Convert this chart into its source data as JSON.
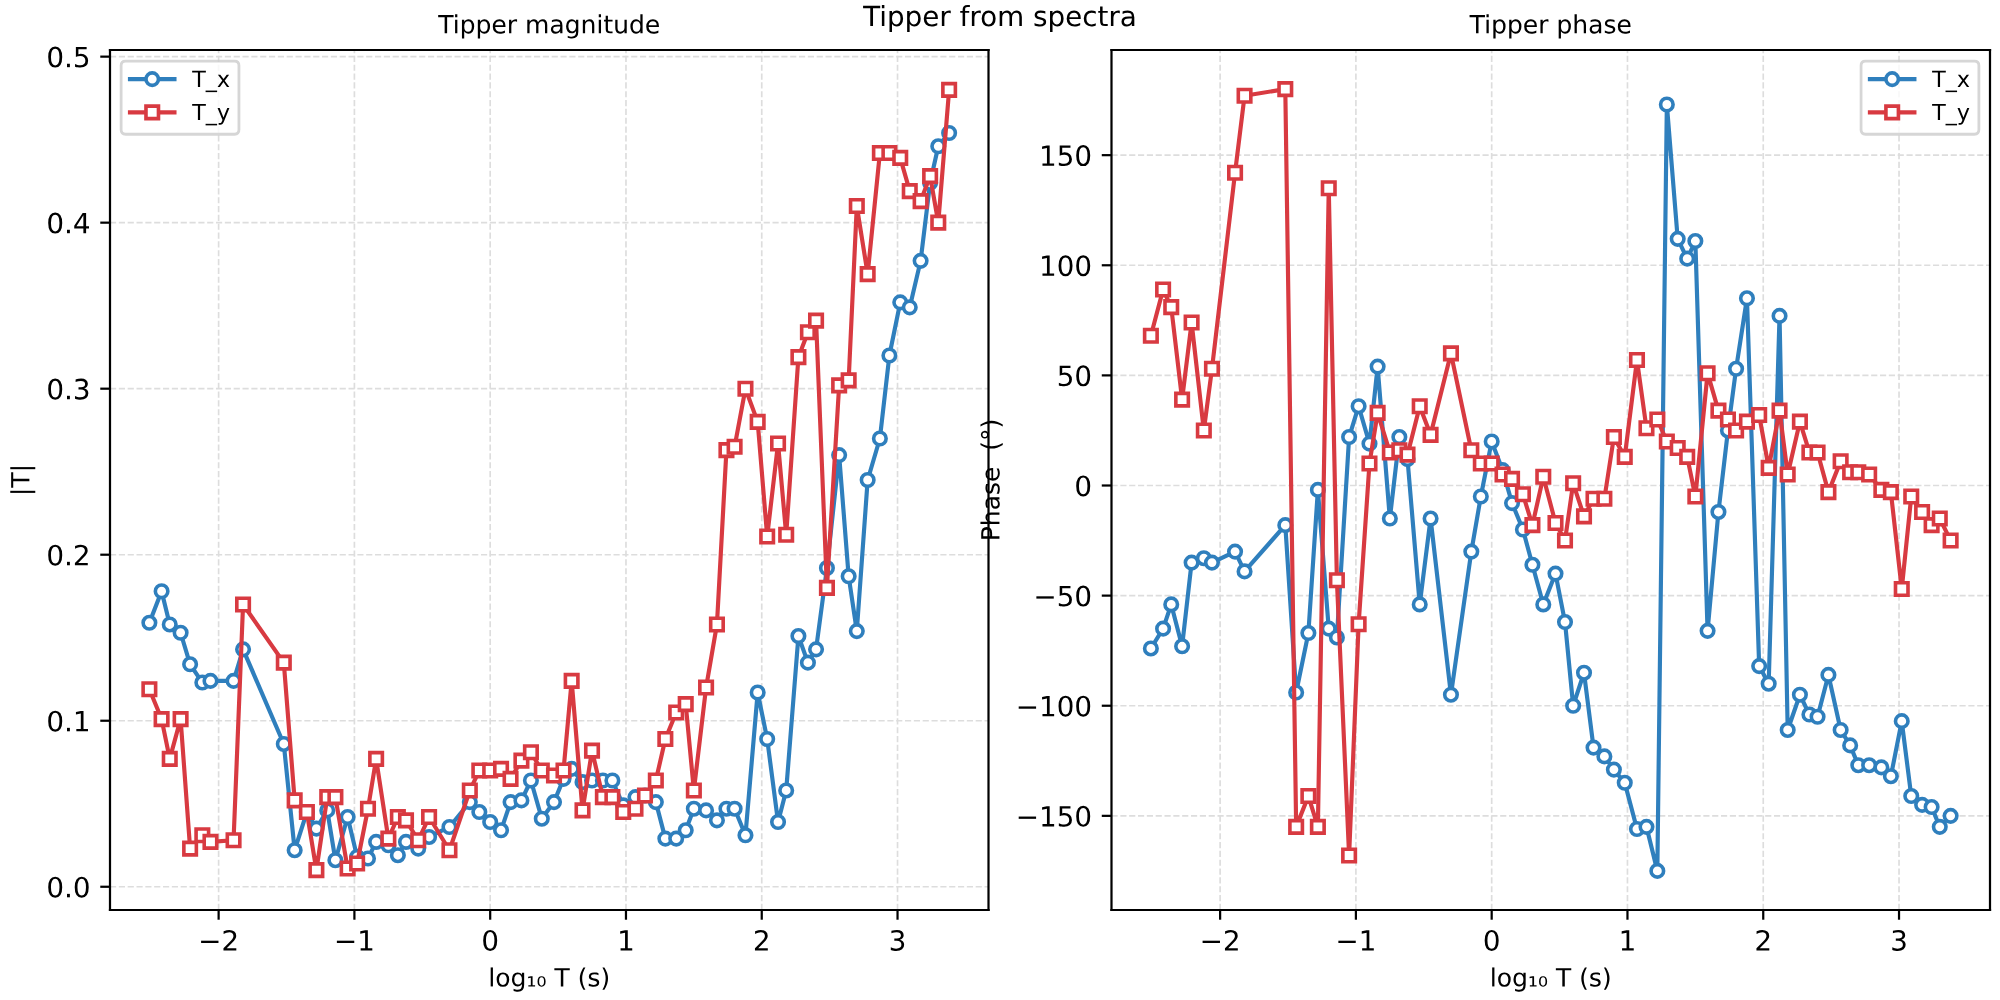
{
  "chart_data": [
    {
      "type": "line",
      "title": "Tipper magnitude",
      "xlabel": "log₁₀ T (s)",
      "ylabel": "|T|",
      "annotations": [
        "Tipper from spectra"
      ],
      "x": [
        -2.51,
        -2.42,
        -2.36,
        -2.28,
        -2.21,
        -2.12,
        -2.06,
        -1.89,
        -1.82,
        -1.52,
        -1.44,
        -1.35,
        -1.28,
        -1.2,
        -1.14,
        -1.05,
        -0.98,
        -0.9,
        -0.84,
        -0.75,
        -0.68,
        -0.62,
        -0.53,
        -0.45,
        -0.3,
        -0.15,
        -0.08,
        0.0,
        0.08,
        0.15,
        0.23,
        0.3,
        0.38,
        0.47,
        0.54,
        0.6,
        0.68,
        0.75,
        0.83,
        0.9,
        0.98,
        1.07,
        1.14,
        1.22,
        1.29,
        1.37,
        1.44,
        1.5,
        1.59,
        1.67,
        1.74,
        1.8,
        1.88,
        1.97,
        2.04,
        2.12,
        2.18,
        2.27,
        2.34,
        2.4,
        2.48,
        2.57,
        2.64,
        2.7,
        2.78,
        2.87,
        2.94,
        3.02,
        3.09,
        3.17,
        3.24,
        3.3,
        3.38
      ],
      "series": [
        {
          "name": "T_x",
          "color": "#2f7fbd",
          "marker": "circle",
          "values": [
            0.159,
            0.178,
            0.158,
            0.153,
            0.134,
            0.123,
            0.124,
            0.124,
            0.143,
            0.086,
            0.022,
            0.045,
            0.035,
            0.046,
            0.016,
            0.042,
            0.018,
            0.017,
            0.027,
            0.025,
            0.019,
            0.027,
            0.023,
            0.03,
            0.036,
            0.051,
            0.045,
            0.039,
            0.034,
            0.051,
            0.052,
            0.064,
            0.041,
            0.051,
            0.065,
            0.071,
            0.063,
            0.064,
            0.064,
            0.064,
            0.049,
            0.054,
            0.055,
            0.051,
            0.029,
            0.029,
            0.034,
            0.047,
            0.046,
            0.04,
            0.047,
            0.047,
            0.031,
            0.117,
            0.089,
            0.039,
            0.058,
            0.151,
            0.135,
            0.143,
            0.192,
            0.26,
            0.187,
            0.154,
            0.245,
            0.27,
            0.32,
            0.352,
            0.349,
            0.377,
            0.424,
            0.446,
            0.454
          ]
        },
        {
          "name": "T_y",
          "color": "#d83a41",
          "marker": "square",
          "values": [
            0.119,
            0.101,
            0.077,
            0.101,
            0.023,
            0.031,
            0.027,
            0.028,
            0.17,
            0.135,
            0.052,
            0.045,
            0.01,
            0.054,
            0.054,
            0.011,
            0.014,
            0.047,
            0.077,
            0.029,
            0.042,
            0.04,
            0.028,
            0.042,
            0.022,
            0.058,
            0.07,
            0.07,
            0.071,
            0.065,
            0.076,
            0.081,
            0.07,
            0.067,
            0.07,
            0.124,
            0.046,
            0.082,
            0.054,
            0.054,
            0.045,
            0.047,
            0.055,
            0.064,
            0.089,
            0.105,
            0.11,
            0.058,
            0.12,
            0.158,
            0.263,
            0.265,
            0.3,
            0.28,
            0.211,
            0.267,
            0.212,
            0.319,
            0.334,
            0.341,
            0.18,
            0.302,
            0.305,
            0.41,
            0.369,
            0.442,
            0.442,
            0.439,
            0.419,
            0.413,
            0.428,
            0.4,
            0.48
          ]
        }
      ],
      "xlim": [
        -2.8,
        3.67
      ],
      "ylim": [
        -0.014,
        0.504
      ],
      "xticks": [
        -2,
        -1,
        0,
        1,
        2,
        3
      ],
      "yticks": [
        {
          "value": 0,
          "label": "0.0"
        },
        0.1,
        0.2,
        0.3,
        0.4,
        0.5
      ],
      "grid": true,
      "legend": "top left",
      "line_style": "solid"
    },
    {
      "type": "line",
      "title": "Tipper phase",
      "xlabel": "log₁₀ T (s)",
      "ylabel": "Phase  (°)",
      "x": [
        -2.51,
        -2.42,
        -2.36,
        -2.28,
        -2.21,
        -2.12,
        -2.06,
        -1.89,
        -1.82,
        -1.52,
        -1.44,
        -1.35,
        -1.28,
        -1.2,
        -1.14,
        -1.05,
        -0.98,
        -0.9,
        -0.84,
        -0.75,
        -0.68,
        -0.62,
        -0.53,
        -0.45,
        -0.3,
        -0.15,
        -0.08,
        0.0,
        0.08,
        0.15,
        0.23,
        0.3,
        0.38,
        0.47,
        0.54,
        0.6,
        0.68,
        0.75,
        0.83,
        0.9,
        0.98,
        1.07,
        1.14,
        1.22,
        1.29,
        1.37,
        1.44,
        1.5,
        1.59,
        1.67,
        1.74,
        1.8,
        1.88,
        1.97,
        2.04,
        2.12,
        2.18,
        2.27,
        2.34,
        2.4,
        2.48,
        2.57,
        2.64,
        2.7,
        2.78,
        2.87,
        2.94,
        3.02,
        3.09,
        3.17,
        3.24,
        3.3,
        3.38
      ],
      "series": [
        {
          "name": "T_x",
          "color": "#2f7fbd",
          "marker": "circle",
          "values": [
            -74,
            -65,
            -54,
            -73,
            -35,
            -33,
            -35,
            -30,
            -39,
            -18,
            -94,
            -67,
            -2,
            -65,
            -69,
            22,
            36,
            19,
            54,
            -15,
            22,
            12,
            -54,
            -15,
            -95,
            -30,
            -5,
            20,
            7,
            -8,
            -20,
            -36,
            -54,
            -40,
            -62,
            -100,
            -85,
            -119,
            -123,
            -129,
            -135,
            -156,
            -155,
            -175,
            173,
            112,
            103,
            111,
            -66,
            -12,
            25,
            53,
            85,
            -82,
            -90,
            77,
            -111,
            -95,
            -104,
            -105,
            -86,
            -111,
            -118,
            -127,
            -127,
            -128,
            -132,
            -107,
            -141,
            -145,
            -146,
            -155,
            -150
          ]
        },
        {
          "name": "T_y",
          "color": "#d83a41",
          "marker": "square",
          "values": [
            68,
            89,
            81,
            39,
            74,
            25,
            53,
            142,
            177,
            180,
            -155,
            -141,
            -155,
            135,
            -43,
            -168,
            -63,
            10,
            33,
            15,
            16,
            14,
            36,
            23,
            60,
            16,
            10,
            10,
            5,
            3,
            -4,
            -18,
            4,
            -17,
            -25,
            1,
            -14,
            -6,
            -6,
            22,
            13,
            57,
            26,
            30,
            20,
            17,
            13,
            -5,
            51,
            34,
            30,
            25,
            29,
            32,
            8,
            34,
            5,
            29,
            15,
            15,
            -3,
            11,
            6,
            6,
            5,
            -2,
            -3,
            -47,
            -5,
            -12,
            -18,
            -15,
            -25
          ]
        }
      ],
      "xlim": [
        -2.8,
        3.67
      ],
      "ylim": [
        -192.75,
        197.75
      ],
      "xticks": [
        -2,
        -1,
        0,
        1,
        2,
        3
      ],
      "yticks": [
        -150,
        -100,
        -50,
        0,
        50,
        100,
        150
      ],
      "grid": true,
      "legend": "top right",
      "line_style": "solid"
    }
  ]
}
